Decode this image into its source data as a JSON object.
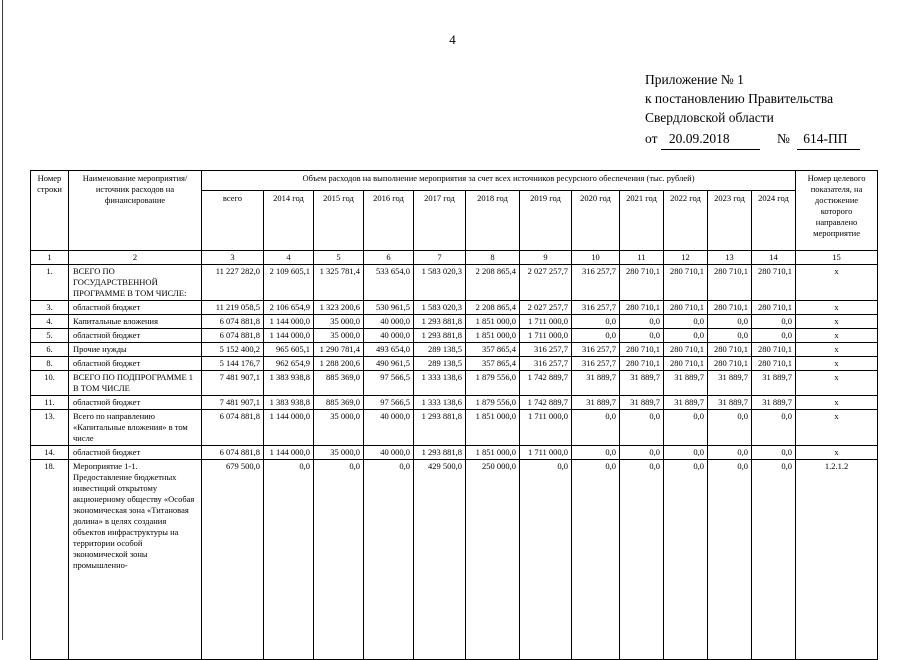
{
  "page": {
    "number": "4"
  },
  "appendix": {
    "line1": "Приложение № 1",
    "line2": "к постановлению Правительства",
    "line3": "Свердловской области",
    "from_label": "от",
    "date": "20.09.2018",
    "number_sign": "№",
    "doc_number": "614-ПП"
  },
  "table": {
    "header": {
      "col_row_number": "Номер строки",
      "col_name": "Наименование мероприятия/источник расходов на финансирование",
      "col_volume": "Объем расходов на выполнение мероприятия за счет всех источников ресурсного обеспечения (тыс. рублей)",
      "col_target": "Номер целевого показателя, на достижение которого направлено мероприятие",
      "sub_columns": [
        "всего",
        "2014 год",
        "2015 год",
        "2016 год",
        "2017 год",
        "2018 год",
        "2019 год",
        "2020 год",
        "2021 год",
        "2022 год",
        "2023 год",
        "2024 год"
      ]
    },
    "number_row": [
      "1",
      "2",
      "3",
      "4",
      "5",
      "6",
      "7",
      "8",
      "9",
      "10",
      "11",
      "12",
      "13",
      "14",
      "15"
    ],
    "rows": [
      {
        "num": "1.",
        "name": "ВСЕГО ПО ГОСУДАРСТВЕННОЙ ПРОГРАММЕ В ТОМ ЧИСЛЕ:",
        "values": [
          "11 227 282,0",
          "2 109 605,1",
          "1 325 781,4",
          "533 654,0",
          "1 583 020,3",
          "2 208 865,4",
          "2 027 257,7",
          "316 257,7",
          "280 710,1",
          "280 710,1",
          "280 710,1",
          "280 710,1"
        ],
        "target": "х"
      },
      {
        "num": "3.",
        "name": "областной бюджет",
        "values": [
          "11 219 058,5",
          "2 106 654,9",
          "1 323 200,6",
          "530 961,5",
          "1 583 020,3",
          "2 208 865,4",
          "2 027 257,7",
          "316 257,7",
          "280 710,1",
          "280 710,1",
          "280 710,1",
          "280 710,1"
        ],
        "target": "х"
      },
      {
        "num": "4.",
        "name": "Капитальные вложения",
        "values": [
          "6 074 881,8",
          "1 144 000,0",
          "35 000,0",
          "40 000,0",
          "1 293 881,8",
          "1 851 000,0",
          "1 711 000,0",
          "0,0",
          "0,0",
          "0,0",
          "0,0",
          "0,0"
        ],
        "target": "х"
      },
      {
        "num": "5.",
        "name": "областной бюджет",
        "values": [
          "6 074 881,8",
          "1 144 000,0",
          "35 000,0",
          "40 000,0",
          "1 293 881,8",
          "1 851 000,0",
          "1 711 000,0",
          "0,0",
          "0,0",
          "0,0",
          "0,0",
          "0,0"
        ],
        "target": "х"
      },
      {
        "num": "6.",
        "name": "Прочие нужды",
        "values": [
          "5 152 400,2",
          "965 605,1",
          "1 290 781,4",
          "493 654,0",
          "289 138,5",
          "357 865,4",
          "316 257,7",
          "316 257,7",
          "280 710,1",
          "280 710,1",
          "280 710,1",
          "280 710,1"
        ],
        "target": "х"
      },
      {
        "num": "8.",
        "name": "областной бюджет",
        "values": [
          "5 144 176,7",
          "962 654,9",
          "1 288 200,6",
          "490 961,5",
          "289 138,5",
          "357 865,4",
          "316 257,7",
          "316 257,7",
          "280 710,1",
          "280 710,1",
          "280 710,1",
          "280 710,1"
        ],
        "target": "х"
      },
      {
        "num": "10.",
        "name": "ВСЕГО ПО ПОДПРОГРАММЕ 1 В ТОМ ЧИСЛЕ",
        "values": [
          "7 481 907,1",
          "1 383 938,8",
          "885 369,0",
          "97 566,5",
          "1 333 138,6",
          "1 879 556,0",
          "1 742 889,7",
          "31 889,7",
          "31 889,7",
          "31 889,7",
          "31 889,7",
          "31 889,7"
        ],
        "target": "х"
      },
      {
        "num": "11.",
        "name": "областной бюджет",
        "values": [
          "7 481 907,1",
          "1 383 938,8",
          "885 369,0",
          "97 566,5",
          "1 333 138,6",
          "1 879 556,0",
          "1 742 889,7",
          "31 889,7",
          "31 889,7",
          "31 889,7",
          "31 889,7",
          "31 889,7"
        ],
        "target": "х"
      },
      {
        "num": "13.",
        "name": "Всего по направлению «Капитальные вложения» в том числе",
        "values": [
          "6 074 881,8",
          "1 144 000,0",
          "35 000,0",
          "40 000,0",
          "1 293 881,8",
          "1 851 000,0",
          "1 711 000,0",
          "0,0",
          "0,0",
          "0,0",
          "0,0",
          "0,0"
        ],
        "target": "х"
      },
      {
        "num": "14.",
        "name": "областной бюджет",
        "values": [
          "6 074 881,8",
          "1 144 000,0",
          "35 000,0",
          "40 000,0",
          "1 293 881,8",
          "1 851 000,0",
          "1 711 000,0",
          "0,0",
          "0,0",
          "0,0",
          "0,0",
          "0,0"
        ],
        "target": "х"
      },
      {
        "num": "18.",
        "name": "Мероприятие 1-1. Предоставление бюджетных инвестиций открытому акционерному обществу «Особая экономическая зона «Титановая долина» в целях создания объектов инфраструктуры на территории особой экономической зоны промышленно-",
        "values": [
          "679 500,0",
          "0,0",
          "0,0",
          "0,0",
          "429 500,0",
          "250 000,0",
          "0,0",
          "0,0",
          "0,0",
          "0,0",
          "0,0",
          "0,0"
        ],
        "target": "1.2.1.2"
      }
    ]
  }
}
